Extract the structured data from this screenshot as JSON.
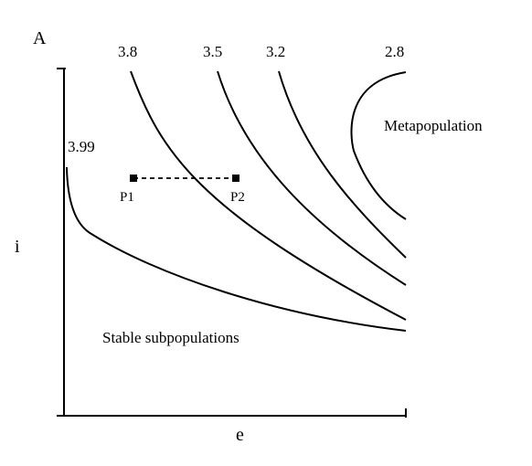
{
  "panel_label": "A",
  "x_axis_label": "e",
  "y_axis_label": "i",
  "curves": [
    {
      "label": "3.99"
    },
    {
      "label": "3.8"
    },
    {
      "label": "3.5"
    },
    {
      "label": "3.2"
    },
    {
      "label": "2.8"
    }
  ],
  "points": [
    {
      "label": "P1"
    },
    {
      "label": "P2"
    }
  ],
  "regions": {
    "metapopulation": "Metapopulation",
    "stable": "Stable subpopulations"
  }
}
